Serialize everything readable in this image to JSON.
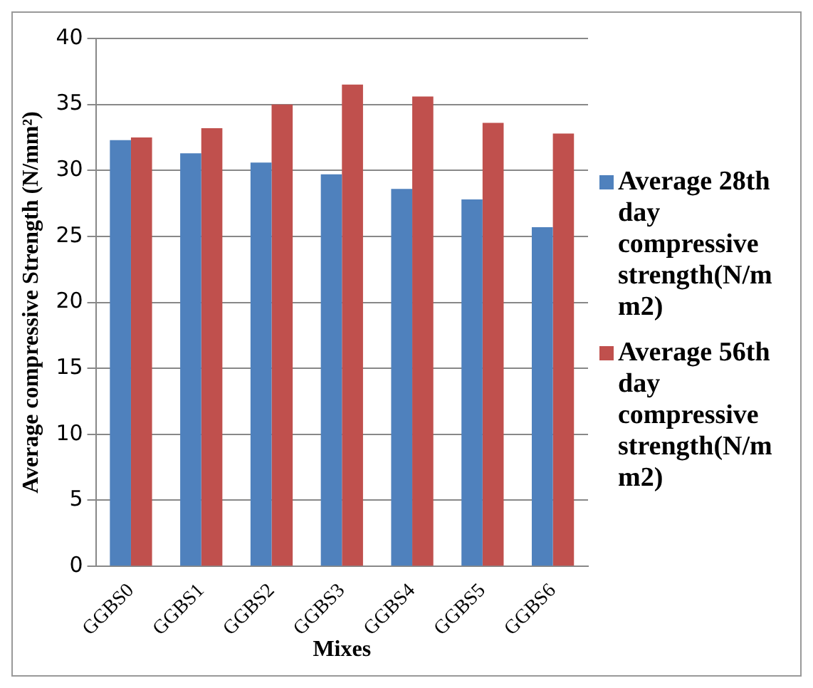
{
  "chart_data": {
    "type": "bar",
    "xlabel": "Mixes",
    "ylabel": "Average compressive Strength (N/mm²)",
    "categories": [
      "GGBS0",
      "GGBS1",
      "GGBS2",
      "GGBS3",
      "GGBS4",
      "GGBS5",
      "GGBS6"
    ],
    "series": [
      {
        "name": "Average 28th day compressive strength(N/mm2)",
        "color": "#4f81bd",
        "values": [
          32.3,
          31.3,
          30.6,
          29.7,
          28.6,
          27.8,
          25.7
        ]
      },
      {
        "name": "Average 56th day compressive strength(N/mm2)",
        "color": "#c0504d",
        "values": [
          32.5,
          33.2,
          35.0,
          36.5,
          35.6,
          33.6,
          32.8
        ]
      }
    ],
    "ylim": [
      0,
      40
    ],
    "yticks": [
      0,
      5,
      10,
      15,
      20,
      25,
      30,
      35,
      40
    ],
    "grid": "y",
    "legend": "right"
  }
}
